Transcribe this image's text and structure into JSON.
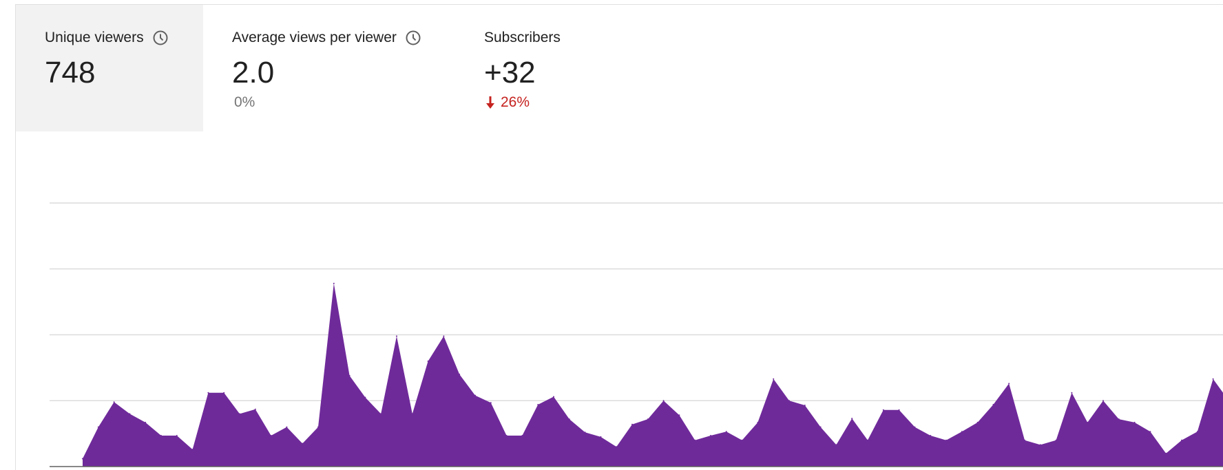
{
  "metrics": [
    {
      "title": "Unique viewers",
      "value": "748",
      "delta": "",
      "has_info": true,
      "selected": true
    },
    {
      "title": "Average views per viewer",
      "value": "2.0",
      "delta": "0%",
      "delta_color": "#757575",
      "has_info": true,
      "selected": false
    },
    {
      "title": "Subscribers",
      "value": "+32",
      "delta": "26%",
      "delta_direction": "down",
      "delta_color": "#c5221f",
      "has_info": false,
      "selected": false
    }
  ],
  "icons": {
    "info": "clock-icon",
    "down": "arrow-down-icon"
  },
  "chart_data": {
    "type": "area",
    "color": "#6f2a9a",
    "gridlines": 4,
    "ylim": [
      0,
      280
    ],
    "x": [
      0,
      1,
      2,
      3,
      4,
      5,
      6,
      7,
      8,
      9,
      10,
      11,
      12,
      13,
      14,
      15,
      16,
      17,
      18,
      19,
      20,
      21,
      22,
      23,
      24,
      25,
      26,
      27,
      28,
      29,
      30,
      31,
      32,
      33,
      34,
      35,
      36,
      37,
      38,
      39,
      40,
      41,
      42,
      43,
      44,
      45,
      46,
      47,
      48,
      49,
      50,
      51,
      52,
      53,
      54,
      55,
      56,
      57,
      58,
      59,
      60,
      61,
      62,
      63,
      64,
      65,
      66,
      67,
      68,
      69,
      70,
      71,
      72,
      73,
      74,
      75
    ],
    "values": [
      12,
      60,
      98,
      80,
      67,
      47,
      47,
      26,
      112,
      112,
      80,
      87,
      47,
      60,
      35,
      60,
      278,
      138,
      105,
      80,
      198,
      80,
      160,
      198,
      140,
      108,
      97,
      47,
      47,
      94,
      106,
      72,
      52,
      45,
      30,
      64,
      72,
      100,
      78,
      40,
      47,
      53,
      40,
      67,
      133,
      100,
      93,
      60,
      33,
      73,
      40,
      86,
      86,
      60,
      47,
      40,
      53,
      67,
      94,
      126,
      40,
      33,
      40,
      112,
      67,
      100,
      72,
      67,
      53,
      20,
      40,
      53,
      133,
      100,
      87,
      76
    ]
  }
}
